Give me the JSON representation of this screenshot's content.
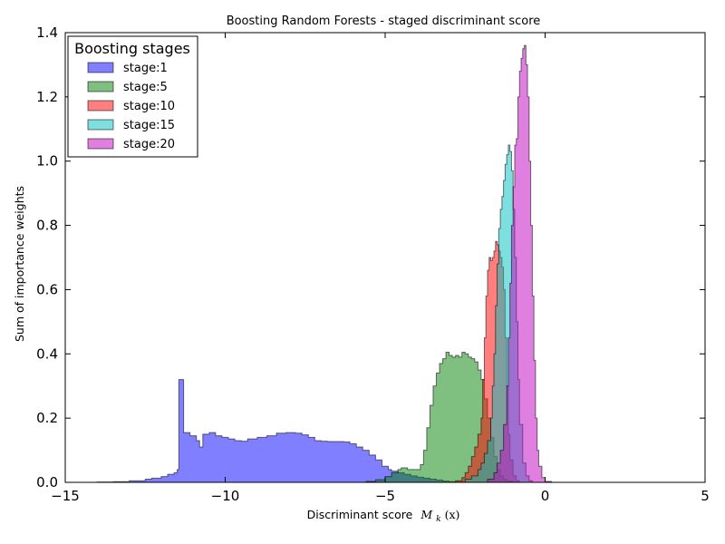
{
  "chart_data": {
    "type": "area",
    "title": "Boosting Random Forests - staged discriminant score",
    "xlabel": "Discriminant score",
    "xlabel_math": "M",
    "xlabel_math_sub": "k",
    "xlabel_math_arg": "(x)",
    "ylabel": "Sum of importance weights",
    "xlim": [
      -15,
      5
    ],
    "ylim": [
      0,
      1.4
    ],
    "xticks": [
      -15,
      -10,
      -5,
      0,
      5
    ],
    "yticks": [
      0.0,
      0.2,
      0.4,
      0.6,
      0.8,
      1.0,
      1.2,
      1.4
    ],
    "xtick_labels": [
      "−15",
      "−10",
      "−5",
      "0",
      "5"
    ],
    "ytick_labels": [
      "0.0",
      "0.2",
      "0.4",
      "0.6",
      "0.8",
      "1.0",
      "1.2",
      "1.4"
    ],
    "legend": {
      "title": "Boosting stages",
      "position": "top-left"
    },
    "series": [
      {
        "name": "stage:1",
        "color": "#0000ff",
        "points": [
          [
            -14.2,
            0.0
          ],
          [
            -14.0,
            0.001
          ],
          [
            -13.5,
            0.002
          ],
          [
            -13.0,
            0.005
          ],
          [
            -12.5,
            0.01
          ],
          [
            -12.3,
            0.013
          ],
          [
            -12.0,
            0.018
          ],
          [
            -11.8,
            0.025
          ],
          [
            -11.6,
            0.03
          ],
          [
            -11.5,
            0.04
          ],
          [
            -11.45,
            0.32
          ],
          [
            -11.3,
            0.155
          ],
          [
            -11.1,
            0.145
          ],
          [
            -10.9,
            0.13
          ],
          [
            -10.8,
            0.11
          ],
          [
            -10.7,
            0.15
          ],
          [
            -10.5,
            0.155
          ],
          [
            -10.3,
            0.145
          ],
          [
            -10.1,
            0.14
          ],
          [
            -9.9,
            0.135
          ],
          [
            -9.7,
            0.13
          ],
          [
            -9.5,
            0.128
          ],
          [
            -9.3,
            0.135
          ],
          [
            -9.0,
            0.14
          ],
          [
            -8.7,
            0.145
          ],
          [
            -8.4,
            0.153
          ],
          [
            -8.1,
            0.155
          ],
          [
            -7.8,
            0.153
          ],
          [
            -7.6,
            0.148
          ],
          [
            -7.4,
            0.14
          ],
          [
            -7.2,
            0.13
          ],
          [
            -7.0,
            0.128
          ],
          [
            -6.8,
            0.127
          ],
          [
            -6.5,
            0.127
          ],
          [
            -6.3,
            0.126
          ],
          [
            -6.1,
            0.12
          ],
          [
            -5.9,
            0.11
          ],
          [
            -5.7,
            0.1
          ],
          [
            -5.5,
            0.085
          ],
          [
            -5.3,
            0.07
          ],
          [
            -5.1,
            0.05
          ],
          [
            -4.9,
            0.04
          ],
          [
            -4.8,
            0.035
          ],
          [
            -4.6,
            0.03
          ],
          [
            -4.4,
            0.025
          ],
          [
            -4.2,
            0.02
          ],
          [
            -4.0,
            0.016
          ],
          [
            -3.8,
            0.013
          ],
          [
            -3.6,
            0.01
          ],
          [
            -3.4,
            0.007
          ],
          [
            -3.2,
            0.004
          ],
          [
            -3.0,
            0.002
          ],
          [
            -2.8,
            0.001
          ],
          [
            -2.5,
            0.0
          ],
          [
            3.6,
            0.0
          ]
        ]
      },
      {
        "name": "stage:5",
        "color": "#008000",
        "points": [
          [
            -6.0,
            0.0
          ],
          [
            -5.6,
            0.003
          ],
          [
            -5.3,
            0.008
          ],
          [
            -5.0,
            0.018
          ],
          [
            -4.8,
            0.03
          ],
          [
            -4.6,
            0.04
          ],
          [
            -4.5,
            0.045
          ],
          [
            -4.3,
            0.04
          ],
          [
            -4.1,
            0.04
          ],
          [
            -3.9,
            0.055
          ],
          [
            -3.8,
            0.1
          ],
          [
            -3.7,
            0.17
          ],
          [
            -3.6,
            0.24
          ],
          [
            -3.5,
            0.3
          ],
          [
            -3.4,
            0.34
          ],
          [
            -3.3,
            0.37
          ],
          [
            -3.2,
            0.385
          ],
          [
            -3.1,
            0.405
          ],
          [
            -3.0,
            0.395
          ],
          [
            -2.9,
            0.39
          ],
          [
            -2.8,
            0.395
          ],
          [
            -2.7,
            0.39
          ],
          [
            -2.6,
            0.405
          ],
          [
            -2.5,
            0.4
          ],
          [
            -2.4,
            0.39
          ],
          [
            -2.3,
            0.385
          ],
          [
            -2.2,
            0.375
          ],
          [
            -2.1,
            0.35
          ],
          [
            -2.0,
            0.32
          ],
          [
            -1.9,
            0.26
          ],
          [
            -1.8,
            0.2
          ],
          [
            -1.7,
            0.14
          ],
          [
            -1.6,
            0.08
          ],
          [
            -1.5,
            0.04
          ],
          [
            -1.4,
            0.02
          ],
          [
            -1.3,
            0.01
          ],
          [
            -1.2,
            0.004
          ],
          [
            -1.0,
            0.0
          ]
        ]
      },
      {
        "name": "stage:10",
        "color": "#ff0000",
        "points": [
          [
            -3.0,
            0.0
          ],
          [
            -2.8,
            0.005
          ],
          [
            -2.6,
            0.015
          ],
          [
            -2.5,
            0.03
          ],
          [
            -2.4,
            0.05
          ],
          [
            -2.3,
            0.08
          ],
          [
            -2.2,
            0.11
          ],
          [
            -2.1,
            0.15
          ],
          [
            -2.0,
            0.2
          ],
          [
            -1.95,
            0.32
          ],
          [
            -1.9,
            0.45
          ],
          [
            -1.85,
            0.58
          ],
          [
            -1.8,
            0.66
          ],
          [
            -1.75,
            0.7
          ],
          [
            -1.7,
            0.69
          ],
          [
            -1.65,
            0.7
          ],
          [
            -1.6,
            0.72
          ],
          [
            -1.55,
            0.75
          ],
          [
            -1.5,
            0.74
          ],
          [
            -1.45,
            0.72
          ],
          [
            -1.4,
            0.7
          ],
          [
            -1.35,
            0.67
          ],
          [
            -1.3,
            0.6
          ],
          [
            -1.25,
            0.45
          ],
          [
            -1.2,
            0.3
          ],
          [
            -1.15,
            0.15
          ],
          [
            -1.1,
            0.07
          ],
          [
            -1.0,
            0.02
          ],
          [
            -0.9,
            0.005
          ],
          [
            -0.8,
            0.0
          ]
        ]
      },
      {
        "name": "stage:15",
        "color": "#00bfbf",
        "points": [
          [
            -2.7,
            0.0
          ],
          [
            -2.5,
            0.01
          ],
          [
            -2.3,
            0.02
          ],
          [
            -2.1,
            0.04
          ],
          [
            -2.0,
            0.06
          ],
          [
            -1.9,
            0.09
          ],
          [
            -1.8,
            0.13
          ],
          [
            -1.7,
            0.2
          ],
          [
            -1.65,
            0.3
          ],
          [
            -1.6,
            0.4
          ],
          [
            -1.55,
            0.55
          ],
          [
            -1.5,
            0.68
          ],
          [
            -1.45,
            0.79
          ],
          [
            -1.4,
            0.85
          ],
          [
            -1.35,
            0.89
          ],
          [
            -1.3,
            0.94
          ],
          [
            -1.25,
            0.99
          ],
          [
            -1.2,
            1.02
          ],
          [
            -1.15,
            1.05
          ],
          [
            -1.1,
            1.03
          ],
          [
            -1.05,
            0.97
          ],
          [
            -1.0,
            0.85
          ],
          [
            -0.95,
            0.7
          ],
          [
            -0.9,
            0.5
          ],
          [
            -0.85,
            0.32
          ],
          [
            -0.8,
            0.18
          ],
          [
            -0.7,
            0.06
          ],
          [
            -0.6,
            0.02
          ],
          [
            -0.5,
            0.005
          ],
          [
            -0.4,
            0.0
          ]
        ]
      },
      {
        "name": "stage:20",
        "color": "#bf00bf",
        "points": [
          [
            -2.0,
            0.0
          ],
          [
            -1.8,
            0.01
          ],
          [
            -1.6,
            0.03
          ],
          [
            -1.5,
            0.06
          ],
          [
            -1.4,
            0.1
          ],
          [
            -1.3,
            0.18
          ],
          [
            -1.2,
            0.3
          ],
          [
            -1.15,
            0.45
          ],
          [
            -1.1,
            0.62
          ],
          [
            -1.05,
            0.8
          ],
          [
            -1.0,
            0.92
          ],
          [
            -0.95,
            1.05
          ],
          [
            -0.9,
            1.07
          ],
          [
            -0.85,
            1.2
          ],
          [
            -0.8,
            1.28
          ],
          [
            -0.75,
            1.32
          ],
          [
            -0.7,
            1.35
          ],
          [
            -0.65,
            1.36
          ],
          [
            -0.6,
            1.3
          ],
          [
            -0.55,
            1.2
          ],
          [
            -0.5,
            1.0
          ],
          [
            -0.45,
            0.8
          ],
          [
            -0.4,
            0.58
          ],
          [
            -0.35,
            0.38
          ],
          [
            -0.3,
            0.2
          ],
          [
            -0.25,
            0.1
          ],
          [
            -0.2,
            0.05
          ],
          [
            -0.1,
            0.015
          ],
          [
            0.0,
            0.003
          ],
          [
            0.2,
            0.0
          ]
        ]
      }
    ]
  }
}
